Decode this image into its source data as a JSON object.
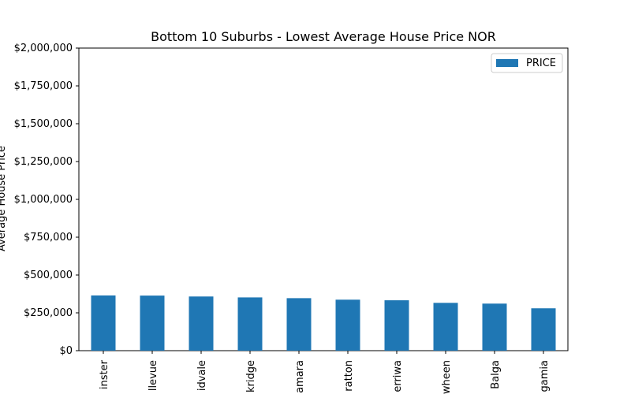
{
  "chart_data": {
    "type": "bar",
    "title": "Bottom 10 Suburbs - Lowest Average House Price NOR",
    "xlabel": "",
    "ylabel": "Average House Price",
    "categories": [
      "Westminster",
      "Bellevue",
      "Midvale",
      "Eden Hill / Stockridge",
      "Koondoola / Tamara",
      "Stratton",
      "Merriwa",
      "Girrawheen",
      "Balga",
      "Nollamara / Ballajura / Koongamia"
    ],
    "category_labels": [
      "inster",
      "llevue",
      "idvale",
      "kridge",
      "amara",
      "ratton",
      "erriwa",
      "wheen",
      "Balga",
      "gamia"
    ],
    "series": [
      {
        "name": "PRICE",
        "values": [
          365000,
          364000,
          358000,
          352000,
          347000,
          337000,
          333000,
          316000,
          311000,
          280000
        ],
        "color": "#1f77b4"
      }
    ],
    "ylim": [
      0,
      2000000
    ],
    "yticks": [
      0,
      250000,
      500000,
      750000,
      1000000,
      1250000,
      1500000,
      1750000,
      2000000
    ],
    "ytick_labels": [
      "$0",
      "$250,000",
      "$500,000",
      "$750,000",
      "$1,000,000",
      "$1,250,000",
      "$1,500,000",
      "$1,750,000",
      "$2,000,000"
    ],
    "grid": false,
    "legend": {
      "position": "top-right",
      "entries": [
        "PRICE"
      ]
    }
  }
}
